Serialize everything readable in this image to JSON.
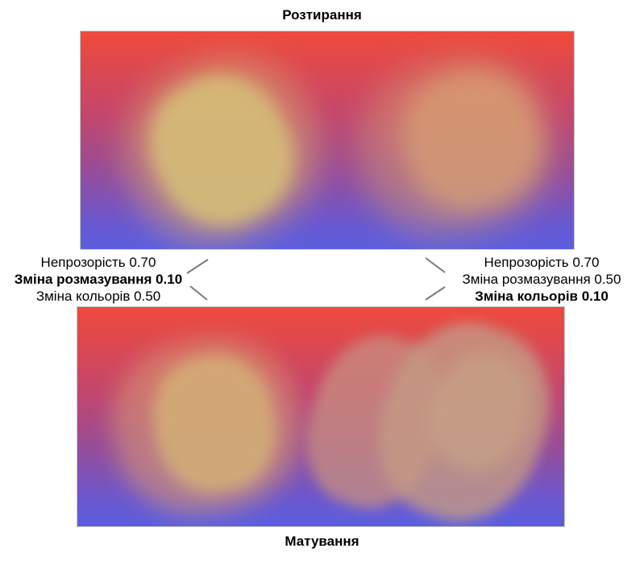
{
  "titles": {
    "top": "Розтирання",
    "bottom": "Матування"
  },
  "params_left": {
    "opacity": "Непрозорість 0.70",
    "smudge_change": "Зміна розмазування 0.10",
    "color_change": "Зміна кольорів 0.50"
  },
  "params_right": {
    "opacity": "Непрозорість 0.70",
    "smudge_change": "Зміна розмазування 0.50",
    "color_change": "Зміна кольорів 0.10"
  },
  "colors": {
    "gradient_top": "#ef4a3c",
    "gradient_mid": "#a24a8e",
    "gradient_bottom": "#5b5fe0",
    "blend_yellow": "#d4c27a",
    "blend_peach": "#d6a076",
    "blend_mauve": "#c0907f"
  }
}
